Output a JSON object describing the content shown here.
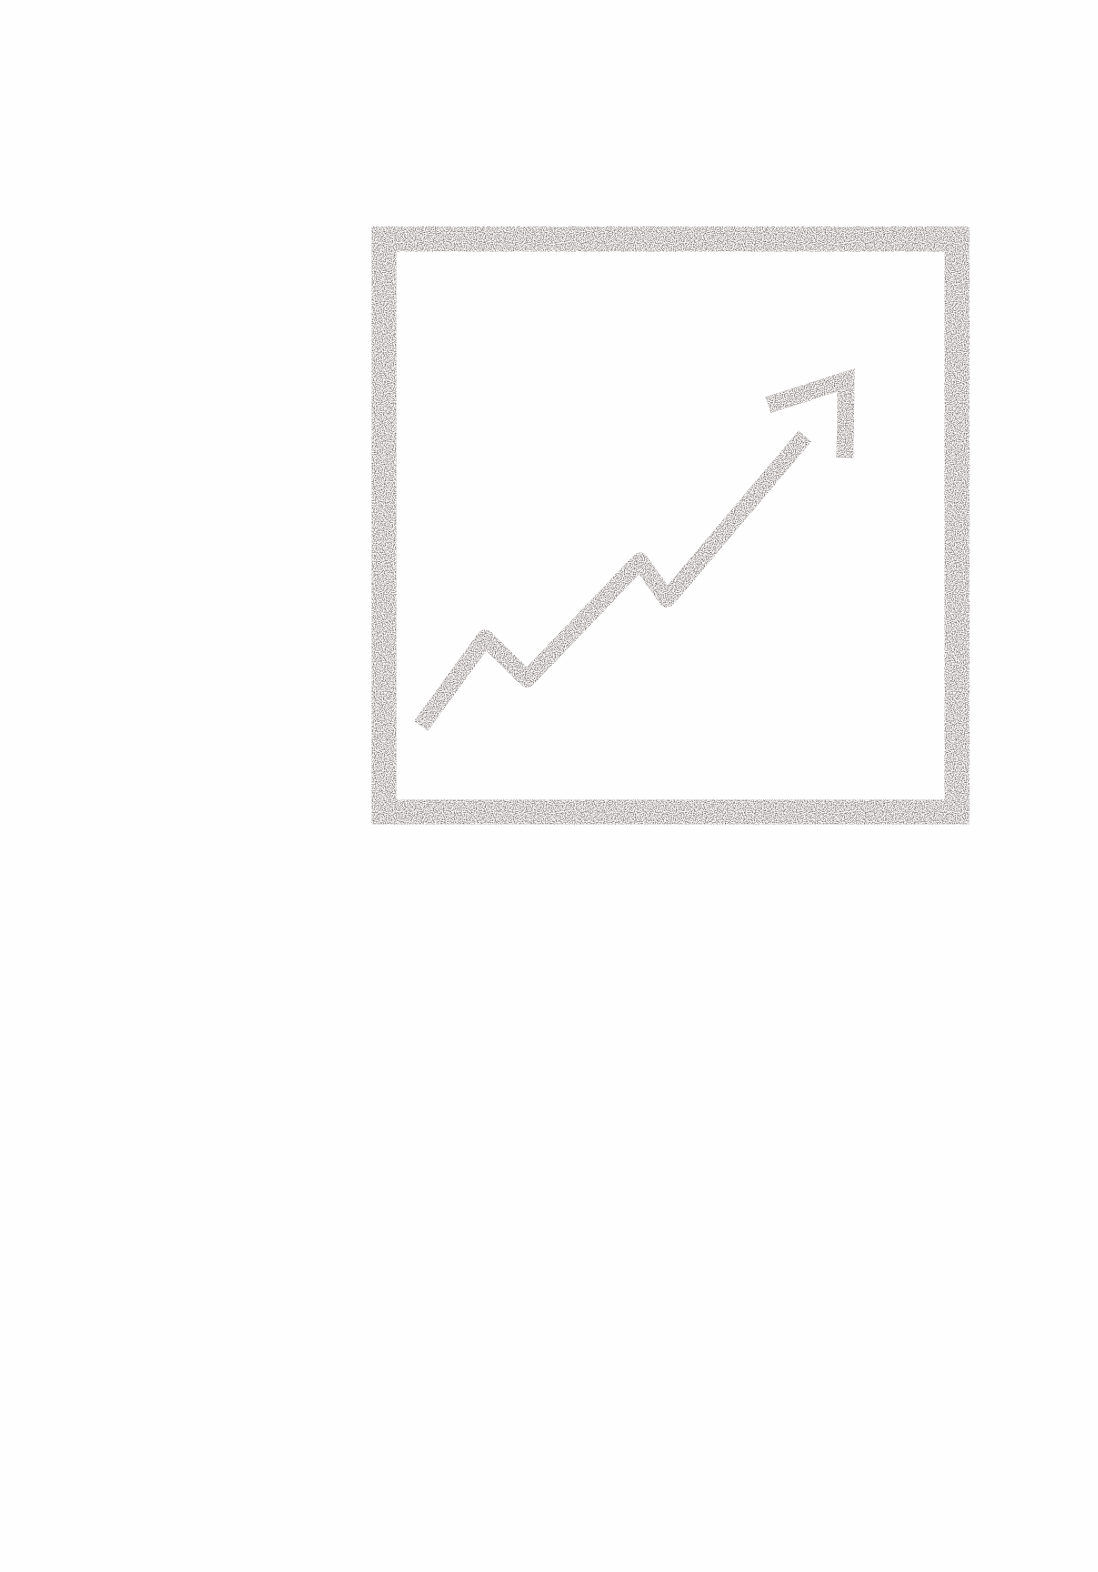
{
  "icon": {
    "name": "trending-up-chart-icon",
    "color": "#5a4f4b",
    "background": "#fefefe"
  }
}
